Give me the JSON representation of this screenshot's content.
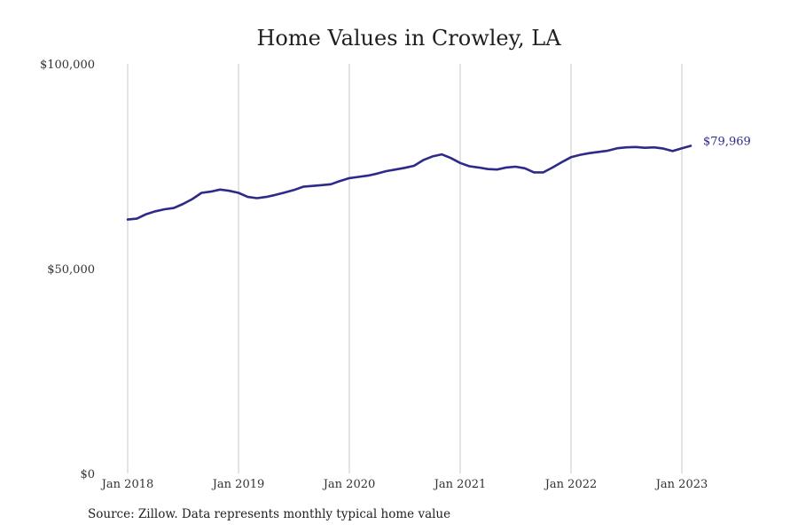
{
  "chart_data": {
    "type": "line",
    "title": "Home Values in Crowley, LA",
    "xlabel": "",
    "ylabel": "",
    "x_tick_labels": [
      "Jan 2018",
      "Jan 2019",
      "Jan 2020",
      "Jan 2021",
      "Jan 2022",
      "Jan 2023"
    ],
    "y_tick_labels": [
      "$0",
      "$50,000",
      "$100,000"
    ],
    "y_tick_values": [
      0,
      50000,
      100000
    ],
    "ylim": [
      0,
      100000
    ],
    "xlim": [
      "2018-01",
      "2023-02"
    ],
    "grid": "vertical",
    "legend": "none",
    "end_label": "$79,969",
    "colors": {
      "line": "#2e2a8a",
      "grid": "#c8c8c8",
      "end_label": "#2e2a8a"
    },
    "series": [
      {
        "x": [
          "2018-01",
          "2018-02",
          "2018-03",
          "2018-04",
          "2018-05",
          "2018-06",
          "2018-07",
          "2018-08",
          "2018-09",
          "2018-10",
          "2018-11",
          "2018-12",
          "2019-01",
          "2019-02",
          "2019-03",
          "2019-04",
          "2019-05",
          "2019-06",
          "2019-07",
          "2019-08",
          "2019-09",
          "2019-10",
          "2019-11",
          "2019-12",
          "2020-01",
          "2020-02",
          "2020-03",
          "2020-04",
          "2020-05",
          "2020-06",
          "2020-07",
          "2020-08",
          "2020-09",
          "2020-10",
          "2020-11",
          "2020-12",
          "2021-01",
          "2021-02",
          "2021-03",
          "2021-04",
          "2021-05",
          "2021-06",
          "2021-07",
          "2021-08",
          "2021-09",
          "2021-10",
          "2021-11",
          "2021-12",
          "2022-01",
          "2022-02",
          "2022-03",
          "2022-04",
          "2022-05",
          "2022-06",
          "2022-07",
          "2022-08",
          "2022-09",
          "2022-10",
          "2022-11",
          "2022-12",
          "2023-01",
          "2023-02"
        ],
        "values": [
          62000,
          62200,
          63300,
          64000,
          64500,
          64800,
          65800,
          67000,
          68500,
          68800,
          69300,
          69000,
          68500,
          67500,
          67200,
          67500,
          68000,
          68600,
          69200,
          70000,
          70200,
          70400,
          70600,
          71400,
          72100,
          72400,
          72700,
          73200,
          73800,
          74200,
          74600,
          75100,
          76500,
          77400,
          77900,
          77000,
          75800,
          75000,
          74700,
          74300,
          74200,
          74700,
          74900,
          74500,
          73500,
          73500,
          74700,
          76000,
          77200,
          77800,
          78200,
          78500,
          78800,
          79400,
          79600,
          79700,
          79500,
          79600,
          79300,
          78700,
          79400,
          79969
        ]
      }
    ]
  },
  "footer": {
    "source": "Source: Zillow. Data represents monthly typical home value"
  }
}
